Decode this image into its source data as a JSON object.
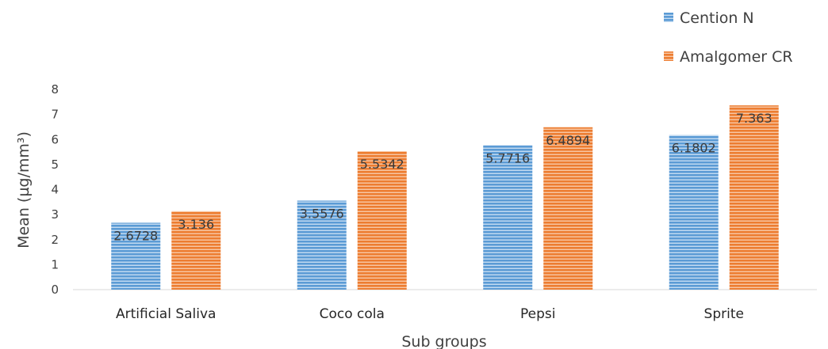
{
  "chart_data": {
    "type": "bar",
    "title": "",
    "xlabel": "Sub groups",
    "ylabel": "Mean (µg/mm³)",
    "ylim": [
      0,
      8
    ],
    "yticks": [
      0,
      1,
      2,
      3,
      4,
      5,
      6,
      7,
      8
    ],
    "grid": false,
    "legend_position": "top-right",
    "categories": [
      "Artificial Saliva",
      "Coco cola",
      "Pepsi",
      "Sprite"
    ],
    "series": [
      {
        "name": "Cention N",
        "color": "#5b9bd5",
        "values": [
          2.6728,
          3.5576,
          5.7716,
          6.1802
        ],
        "labels": [
          "2.6728",
          "3.5576",
          "5.7716",
          "6.1802"
        ]
      },
      {
        "name": "Amalgomer CR",
        "color": "#ed7d31",
        "values": [
          3.136,
          5.5342,
          6.4894,
          7.363
        ],
        "labels": [
          "3.136",
          "5.5342",
          "6.4894",
          "7.363"
        ]
      }
    ]
  }
}
